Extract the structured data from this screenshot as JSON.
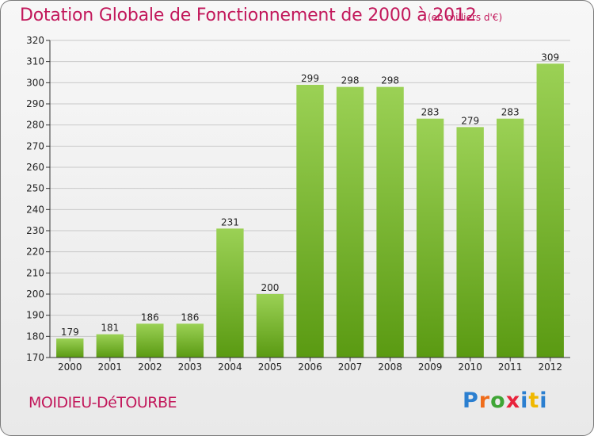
{
  "header": {
    "title": "Dotation Globale de Fonctionnement de 2000 à 2012",
    "unit": "(en milliers d'€)"
  },
  "footer": {
    "commune": "MOIDIEU-DéTOURBE",
    "logo_letters": [
      "P",
      "r",
      "o",
      "x",
      "i",
      "t",
      "i"
    ],
    "logo_colors": [
      "#2b7fd0",
      "#ef6c1a",
      "#3fa535",
      "#e8233c",
      "#2b7fd0",
      "#f0b800",
      "#2b7fd0"
    ]
  },
  "colors": {
    "bar_top": "#9bd155",
    "bar_bottom": "#5a9a12",
    "grid": "#c8c8c8",
    "text_accent": "#c2185b"
  },
  "chart_data": {
    "type": "bar",
    "title": "Dotation Globale de Fonctionnement de 2000 à 2012",
    "subtitle": "(en milliers d'€)",
    "xlabel": "",
    "ylabel": "",
    "categories": [
      "2000",
      "2001",
      "2002",
      "2003",
      "2004",
      "2005",
      "2006",
      "2007",
      "2008",
      "2009",
      "2010",
      "2011",
      "2012"
    ],
    "values": [
      179,
      181,
      186,
      186,
      231,
      200,
      299,
      298,
      298,
      283,
      279,
      283,
      309
    ],
    "ylim": [
      170,
      320
    ],
    "yticks": [
      170,
      180,
      190,
      200,
      210,
      220,
      230,
      240,
      250,
      260,
      270,
      280,
      290,
      300,
      310,
      320
    ],
    "grid": "horizontal",
    "legend": "none"
  }
}
